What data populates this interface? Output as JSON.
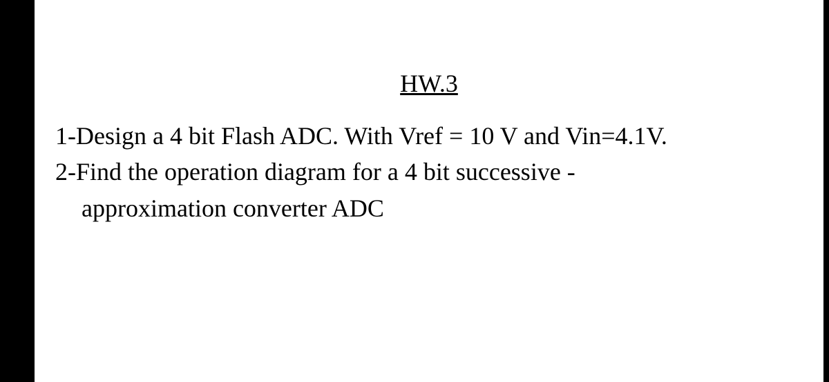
{
  "document": {
    "title": "HW.3",
    "title_fontsize": 36,
    "body_fontsize": 36,
    "font_family": "Times New Roman",
    "text_color": "#000000",
    "background_color": "#ffffff",
    "outer_background_color": "#000000",
    "problems": {
      "line1": "1-Design a 4 bit Flash ADC. With Vref = 10 V and Vin=4.1V.",
      "line2": "2-Find the operation diagram for a 4 bit successive -",
      "line3": "approximation converter ADC"
    }
  }
}
